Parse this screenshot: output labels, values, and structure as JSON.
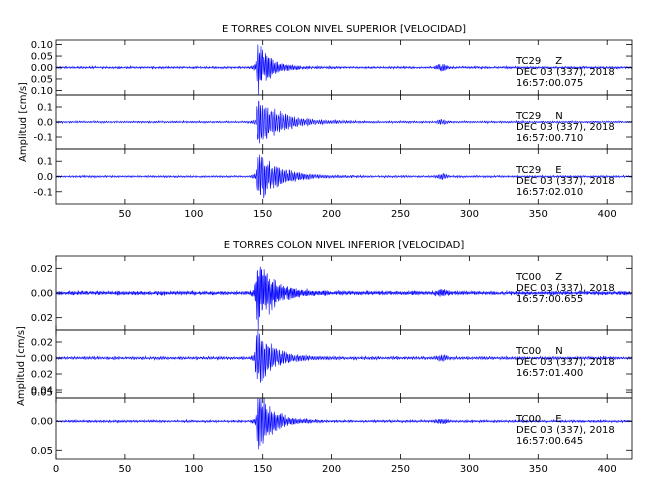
{
  "colors": {
    "trace": "#0000ff",
    "frame": "#000000",
    "background": "#ffffff"
  },
  "chart_data": [
    {
      "type": "line",
      "title": "E TORRES COLON NIVEL SUPERIOR [VELOCIDAD]",
      "ylabel": "Amplitud [cm/s]",
      "xlim": [
        0,
        418
      ],
      "x_ticks": [
        50,
        100,
        150,
        200,
        250,
        300,
        350,
        400
      ],
      "x_tick_labels": [
        "50",
        "100",
        "150",
        "200",
        "250",
        "300",
        "350",
        "400"
      ],
      "grid": false,
      "panels": [
        {
          "station": "TC29",
          "component": "Z",
          "date": "DEC 03 (337), 2018",
          "time": "16:57:00.075",
          "ylim": [
            -0.12,
            0.12
          ],
          "y_ticks": [
            0.1,
            0.05,
            0.0,
            -0.05,
            -0.1
          ],
          "y_tick_labels": [
            "0.10",
            "0.05",
            "0.00",
            "0.05",
            "0.10"
          ],
          "noise": 0.0035,
          "peak": 0.12,
          "onset": 145,
          "decay": 9,
          "period": 1.1,
          "late_event": {
            "t": 280,
            "amp": 0.012
          }
        },
        {
          "station": "TC29",
          "component": "N",
          "date": "DEC 03 (337), 2018",
          "time": "16:57:00.710",
          "ylim": [
            -0.18,
            0.18
          ],
          "y_ticks": [
            0.1,
            0.0,
            -0.1
          ],
          "y_tick_labels": [
            "0.1",
            "0.0",
            "-0.1"
          ],
          "noise": 0.005,
          "peak": 0.17,
          "onset": 145,
          "decay": 16,
          "period": 1.3,
          "late_event": {
            "t": 280,
            "amp": 0.012
          }
        },
        {
          "station": "TC29",
          "component": "E",
          "date": "DEC 03 (337), 2018",
          "time": "16:57:02.010",
          "ylim": [
            -0.18,
            0.18
          ],
          "y_ticks": [
            0.1,
            0.0,
            -0.1
          ],
          "y_tick_labels": [
            "0.1",
            "0.0",
            "-0.1"
          ],
          "noise": 0.005,
          "peak": 0.17,
          "onset": 145,
          "decay": 14,
          "period": 1.2,
          "late_event": {
            "t": 280,
            "amp": 0.015
          }
        }
      ]
    },
    {
      "type": "line",
      "title": "E TORRES COLON NIVEL INFERIOR [VELOCIDAD]",
      "ylabel": "Amplitud [cm/s]",
      "xlim": [
        0,
        418
      ],
      "x_ticks": [
        0,
        50,
        100,
        150,
        200,
        250,
        300,
        350,
        400
      ],
      "x_tick_labels": [
        "0",
        "50",
        "100",
        "150",
        "200",
        "250",
        "300",
        "350",
        "400"
      ],
      "grid": false,
      "panels": [
        {
          "station": "TC00",
          "component": "Z",
          "date": "DEC 03 (337), 2018",
          "time": "16:57:00.655",
          "ylim": [
            -0.03,
            0.03
          ],
          "y_ticks": [
            0.02,
            0.0,
            -0.02
          ],
          "y_tick_labels": [
            "0.02",
            "0.00",
            "0.02"
          ],
          "noise": 0.0012,
          "peak": 0.03,
          "onset": 144,
          "decay": 12,
          "period": 1.0,
          "late_event": {
            "t": 280,
            "amp": 0.0025
          }
        },
        {
          "station": "TC00",
          "component": "N",
          "date": "DEC 03 (337), 2018",
          "time": "16:57:01.400",
          "ylim": [
            -0.05,
            0.035
          ],
          "y_ticks": [
            0.02,
            0.0,
            -0.02,
            -0.04
          ],
          "y_tick_labels": [
            "0.02",
            "0.00",
            "0.02",
            "0.04"
          ],
          "noise": 0.0014,
          "peak": 0.035,
          "onset": 144,
          "decay": 12,
          "period": 1.2,
          "late_event": {
            "t": 280,
            "amp": 0.003
          }
        },
        {
          "station": "TC00",
          "component": "E",
          "date": "DEC 03 (337), 2018",
          "time": "16:57:00.645",
          "ylim": [
            -0.065,
            0.04
          ],
          "y_ticks": [
            0.05,
            0.0,
            -0.05
          ],
          "y_tick_labels": [
            "0.05",
            "0.00",
            "0.05"
          ],
          "noise": 0.0015,
          "peak": 0.06,
          "onset": 145,
          "decay": 10,
          "period": 1.1,
          "late_event": {
            "t": 280,
            "amp": 0.003
          }
        }
      ]
    }
  ]
}
